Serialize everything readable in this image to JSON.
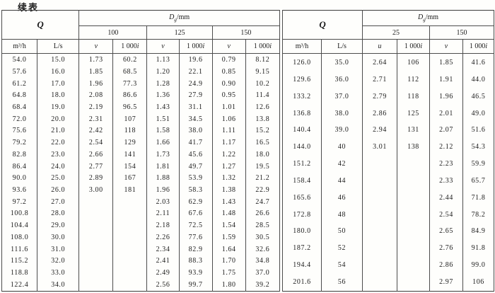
{
  "page": {
    "continued_label": "续表"
  },
  "headers": {
    "q": "Q",
    "d_symbol": "D",
    "d_subscript": "g",
    "d_unit": "/mm",
    "flow_m3h": "m³/h",
    "flow_ls": "L/s",
    "velocity_v": "v",
    "velocity_u": "u",
    "i_prefix": "1 000",
    "i_symbol": "i"
  },
  "left_table": {
    "diameters": [
      "100",
      "125",
      "150"
    ],
    "rows": [
      [
        "54.0",
        "15.0",
        "1.73",
        "60.2",
        "1.13",
        "19.6",
        "0.79",
        "8.12"
      ],
      [
        "57.6",
        "16.0",
        "1.85",
        "68.5",
        "1.20",
        "22.1",
        "0.85",
        "9.15"
      ],
      [
        "61.2",
        "17.0",
        "1.96",
        "77.3",
        "1.28",
        "24.9",
        "0.90",
        "10.2"
      ],
      [
        "64.8",
        "18.0",
        "2.08",
        "86.6",
        "1.36",
        "27.9",
        "0.95",
        "11.4"
      ],
      [
        "68.4",
        "19.0",
        "2.19",
        "96.5",
        "1.43",
        "31.1",
        "1.01",
        "12.6"
      ],
      [
        "72.0",
        "20.0",
        "2.31",
        "107",
        "1.51",
        "34.5",
        "1.06",
        "13.8"
      ],
      [
        "75.6",
        "21.0",
        "2.42",
        "118",
        "1.58",
        "38.0",
        "1.11",
        "15.2"
      ],
      [
        "79.2",
        "22.0",
        "2.54",
        "129",
        "1.66",
        "41.7",
        "1.17",
        "16.5"
      ],
      [
        "82.8",
        "23.0",
        "2.66",
        "141",
        "1.73",
        "45.6",
        "1.22",
        "18.0"
      ],
      [
        "86.4",
        "24.0",
        "2.77",
        "154",
        "1.81",
        "49.7",
        "1.27",
        "19.5"
      ],
      [
        "90.0",
        "25.0",
        "2.89",
        "167",
        "1.88",
        "53.9",
        "1.32",
        "21.2"
      ],
      [
        "93.6",
        "26.0",
        "3.00",
        "181",
        "1.96",
        "58.3",
        "1.38",
        "22.9"
      ],
      [
        "97.2",
        "27.0",
        "",
        "",
        "2.03",
        "62.9",
        "1.43",
        "24.7"
      ],
      [
        "100.8",
        "28.0",
        "",
        "",
        "2.11",
        "67.6",
        "1.48",
        "26.6"
      ],
      [
        "104.4",
        "29.0",
        "",
        "",
        "2.18",
        "72.5",
        "1.54",
        "28.5"
      ],
      [
        "108.0",
        "30.0",
        "",
        "",
        "2.26",
        "77.6",
        "1.59",
        "30.5"
      ],
      [
        "111.6",
        "31.0",
        "",
        "",
        "2.34",
        "82.9",
        "1.64",
        "32.6"
      ],
      [
        "115.2",
        "32.0",
        "",
        "",
        "2.41",
        "88.3",
        "1.70",
        "34.8"
      ],
      [
        "118.8",
        "33.0",
        "",
        "",
        "2.49",
        "93.9",
        "1.75",
        "37.0"
      ],
      [
        "122.4",
        "34.0",
        "",
        "",
        "2.56",
        "99.7",
        "1.80",
        "39.2"
      ]
    ]
  },
  "right_table": {
    "diameters": [
      "25",
      "150"
    ],
    "rows": [
      [
        "126.0",
        "35.0",
        "2.64",
        "106",
        "1.85",
        "41.6"
      ],
      [
        "129.6",
        "36.0",
        "2.71",
        "112",
        "1.91",
        "44.0"
      ],
      [
        "133.2",
        "37.0",
        "2.79",
        "118",
        "1.96",
        "46.5"
      ],
      [
        "136.8",
        "38.0",
        "2.86",
        "125",
        "2.01",
        "49.0"
      ],
      [
        "140.4",
        "39.0",
        "2.94",
        "131",
        "2.07",
        "51.6"
      ],
      [
        "144.0",
        "40",
        "3.01",
        "138",
        "2.12",
        "54.3"
      ],
      [
        "151.2",
        "42",
        "",
        "",
        "2.23",
        "59.9"
      ],
      [
        "158.4",
        "44",
        "",
        "",
        "2.33",
        "65.7"
      ],
      [
        "165.6",
        "46",
        "",
        "",
        "2.44",
        "71.8"
      ],
      [
        "172.8",
        "48",
        "",
        "",
        "2.54",
        "78.2"
      ],
      [
        "180.0",
        "50",
        "",
        "",
        "2.65",
        "84.9"
      ],
      [
        "187.2",
        "52",
        "",
        "",
        "2.76",
        "91.8"
      ],
      [
        "194.4",
        "54",
        "",
        "",
        "2.86",
        "99.0"
      ],
      [
        "201.6",
        "56",
        "",
        "",
        "2.97",
        "106"
      ],
      [
        "",
        "",
        "",
        "",
        "",
        ""
      ],
      [
        "",
        "",
        "",
        "",
        "",
        ""
      ],
      [
        "",
        "",
        "",
        "",
        "",
        ""
      ],
      [
        "",
        "",
        "",
        "",
        "",
        ""
      ],
      [
        "",
        "",
        "",
        "",
        "",
        ""
      ],
      [
        "",
        "",
        "",
        "",
        "",
        ""
      ]
    ]
  }
}
